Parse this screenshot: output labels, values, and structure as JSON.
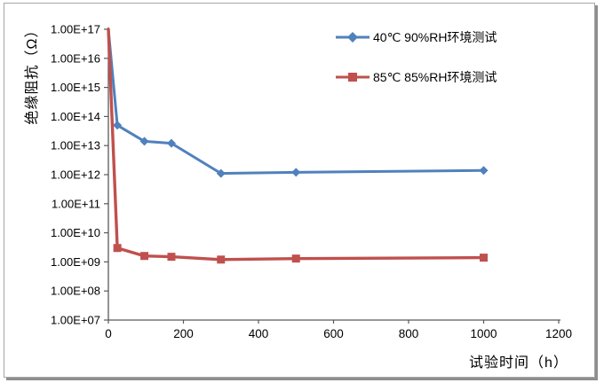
{
  "window": {
    "background": "#ffffff",
    "frame_border_color": "#a6a6a6",
    "frame_shadow_color": "#8e8e8e"
  },
  "chart_data": {
    "type": "line",
    "title": "",
    "xlabel": "试验时间（h）",
    "ylabel": "绝缘阻抗（Ω）",
    "y_scale": "log",
    "grid": false,
    "legend_position": "top-right-inside",
    "axis_color": "#595959",
    "tick_label_color": "#000000",
    "x_axis": {
      "min": 0,
      "max": 1200,
      "tick_values": [
        0,
        200,
        400,
        600,
        800,
        1000,
        1200
      ],
      "tick_labels": [
        "0",
        "200",
        "400",
        "600",
        "800",
        "1000",
        "1200"
      ]
    },
    "y_axis": {
      "min": 10000000.0,
      "max": 1e+17,
      "tick_labels": [
        "1.00E+17",
        "1.00E+16",
        "1.00E+15",
        "1.00E+14",
        "1.00E+13",
        "1.00E+12",
        "1.00E+11",
        "1.00E+10",
        "1.00E+09",
        "1.00E+08",
        "1.00E+07"
      ],
      "tick_values": [
        1e+17,
        1e+16,
        1000000000000000.0,
        100000000000000.0,
        10000000000000.0,
        1000000000000.0,
        100000000000.0,
        10000000000.0,
        1000000000.0,
        100000000.0,
        10000000.0
      ]
    },
    "series": [
      {
        "name": "40℃ 90%RH环境测试",
        "color": "#4F81BD",
        "marker": "diamond",
        "x": [
          0,
          24,
          96,
          168,
          300,
          500,
          1000
        ],
        "y": [
          1e+17,
          50000000000000.0,
          14000000000000.0,
          12000000000000.0,
          1100000000000.0,
          1200000000000.0,
          1400000000000.0
        ]
      },
      {
        "name": "85℃ 85%RH环境测试",
        "color": "#C0504D",
        "marker": "square",
        "x": [
          0,
          24,
          96,
          168,
          300,
          500,
          1000
        ],
        "y": [
          1e+17,
          3000000000.0,
          1600000000.0,
          1500000000.0,
          1200000000.0,
          1300000000.0,
          1400000000.0
        ]
      }
    ]
  }
}
